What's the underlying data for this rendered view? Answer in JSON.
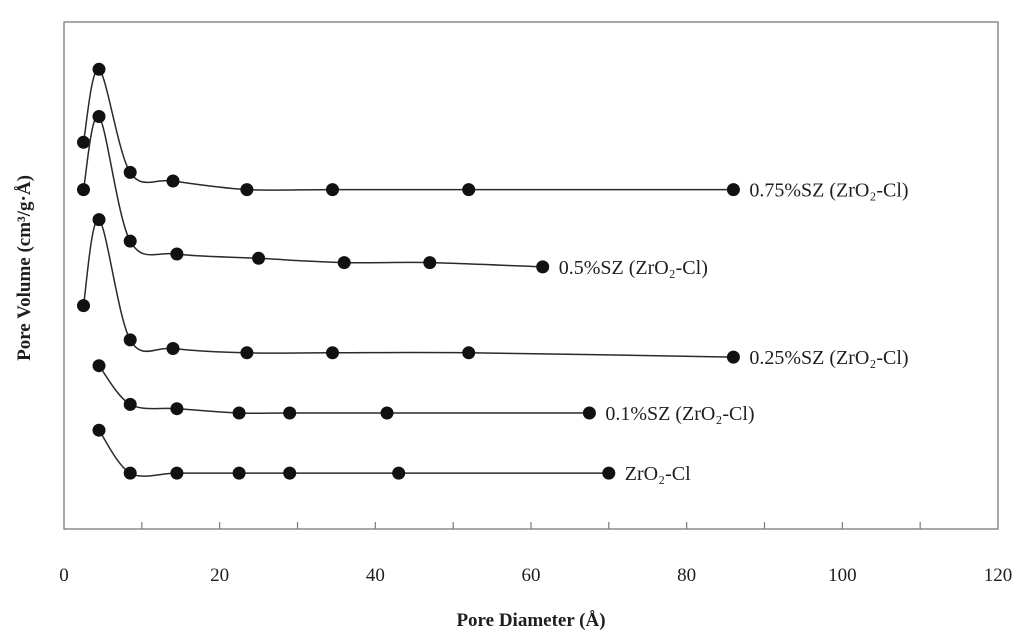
{
  "chart_data": {
    "type": "line",
    "xlabel": "Pore Diameter (Å)",
    "ylabel": "Pore Volume (cm³/g·Å)",
    "xlim": [
      0,
      120
    ],
    "x_ticks": [
      0,
      20,
      40,
      60,
      80,
      100,
      120
    ],
    "y_tick_labels_shown": false,
    "grid": false,
    "legend": "none",
    "offset_curves": true,
    "series": [
      {
        "label_text": "0.75%SZ (ZrO₂-Cl)",
        "x": [
          2.5,
          4.5,
          8.5,
          14,
          23.5,
          34.5,
          52,
          86
        ],
        "y": [
          0.9,
          1.07,
          0.83,
          0.81,
          0.79,
          0.79,
          0.79,
          0.79
        ]
      },
      {
        "label_text": "0.5%SZ (ZrO₂-Cl)",
        "x": [
          2.5,
          4.5,
          8.5,
          14.5,
          25,
          36,
          47,
          61.5
        ],
        "y": [
          0.79,
          0.96,
          0.67,
          0.64,
          0.63,
          0.62,
          0.62,
          0.61
        ]
      },
      {
        "label_text": "0.25%SZ (ZrO₂-Cl)",
        "x": [
          2.5,
          4.5,
          8.5,
          14,
          23.5,
          34.5,
          52,
          86
        ],
        "y": [
          0.52,
          0.72,
          0.44,
          0.42,
          0.41,
          0.41,
          0.41,
          0.4
        ]
      },
      {
        "label_text": "0.1%SZ (ZrO₂-Cl)",
        "x": [
          4.5,
          8.5,
          14.5,
          22.5,
          29,
          41.5,
          67.5
        ],
        "y": [
          0.38,
          0.29,
          0.28,
          0.27,
          0.27,
          0.27,
          0.27
        ]
      },
      {
        "label_text": "ZrO₂-Cl",
        "x": [
          4.5,
          8.5,
          14.5,
          22.5,
          29,
          43,
          70
        ],
        "y": [
          0.23,
          0.13,
          0.13,
          0.13,
          0.13,
          0.13,
          0.13
        ]
      }
    ]
  }
}
